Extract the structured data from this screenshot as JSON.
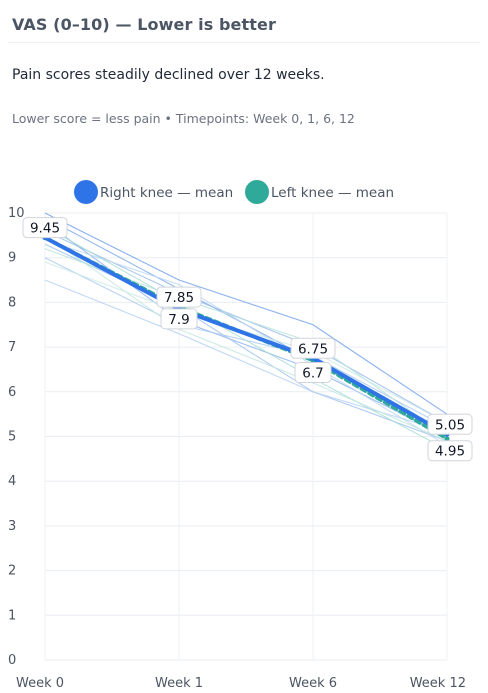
{
  "card": {
    "title": "VAS (0–10) — Lower is better",
    "headline": "Pain scores steadily declined over 12 weeks.",
    "subline": "Lower score = less pain • Timepoints: Week 0, 1, 6, 12"
  },
  "chart_data": {
    "type": "line",
    "categories": [
      "Week 0",
      "Week 1",
      "Week 6",
      "Week 12"
    ],
    "ylim": [
      0,
      10
    ],
    "yticks": [
      0,
      1,
      2,
      3,
      4,
      5,
      6,
      7,
      8,
      9,
      10
    ],
    "grid": true,
    "legend_position": "top",
    "series": [
      {
        "name": "Right knee — mean",
        "color": "#2f74e6",
        "dash": "solid",
        "values": [
          9.45,
          7.85,
          6.75,
          5.05
        ]
      },
      {
        "name": "Left  knee — mean",
        "color": "#2ea99a",
        "dash": "dashed",
        "values": [
          9.45,
          7.9,
          6.7,
          4.95
        ]
      }
    ],
    "individual_lines": [
      {
        "color": "#6b9ee8",
        "values": [
          10.0,
          8.5,
          7.5,
          5.5
        ]
      },
      {
        "color": "#7aa8ea",
        "values": [
          9.9,
          8.3,
          6.7,
          5.1
        ]
      },
      {
        "color": "#86afec",
        "values": [
          9.8,
          7.6,
          6.5,
          5.0
        ]
      },
      {
        "color": "#93b8ee",
        "values": [
          9.6,
          8.2,
          7.0,
          5.3
        ]
      },
      {
        "color": "#9fc0f0",
        "values": [
          9.3,
          7.9,
          6.0,
          4.9
        ]
      },
      {
        "color": "#a8c7f2",
        "values": [
          9.0,
          7.5,
          6.8,
          5.2
        ]
      },
      {
        "color": "#b4cff3",
        "values": [
          8.5,
          7.3,
          6.0,
          5.1
        ]
      },
      {
        "color": "#bcd4f4",
        "values": [
          9.4,
          8.4,
          6.6,
          4.8
        ]
      },
      {
        "color": "#a6dcd4",
        "values": [
          9.7,
          8.0,
          6.3,
          4.7
        ]
      },
      {
        "color": "#b3e1da",
        "values": [
          9.2,
          8.1,
          7.1,
          5.0
        ]
      },
      {
        "color": "#bfe6df",
        "values": [
          9.5,
          7.4,
          6.2,
          4.9
        ]
      },
      {
        "color": "#c9eae4",
        "values": [
          8.9,
          7.8,
          6.9,
          5.3
        ]
      }
    ],
    "data_labels": [
      {
        "series": 0,
        "point": 0,
        "text": "9.45"
      },
      {
        "series": 0,
        "point": 1,
        "text": "7.85"
      },
      {
        "series": 1,
        "point": 1,
        "text": "7.9"
      },
      {
        "series": 0,
        "point": 2,
        "text": "6.75"
      },
      {
        "series": 1,
        "point": 2,
        "text": "6.7"
      },
      {
        "series": 0,
        "point": 3,
        "text": "5.05"
      },
      {
        "series": 1,
        "point": 3,
        "text": "4.95"
      }
    ]
  }
}
